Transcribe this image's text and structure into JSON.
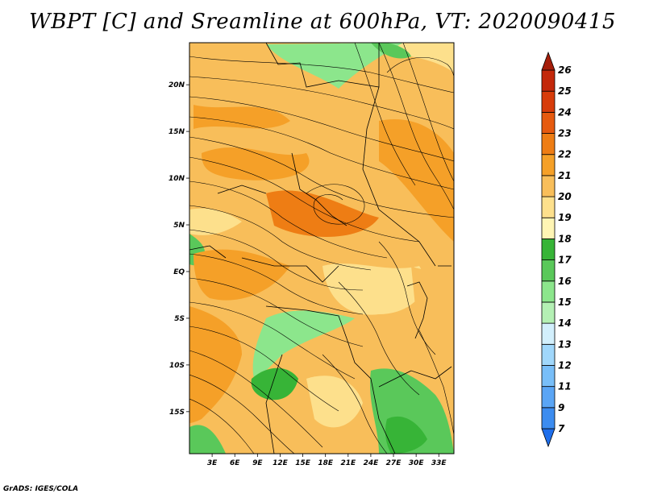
{
  "title": "WBPT [C] and Sreamline at 600hPa, VT: 2020090415",
  "credit": "GrADS: IGES/COLA",
  "map": {
    "lat_labels": [
      "20N",
      "15N",
      "10N",
      "5N",
      "EQ",
      "5S",
      "10S",
      "15S"
    ],
    "lat_values": [
      20,
      15,
      10,
      5,
      0,
      -5,
      -10,
      -15
    ],
    "lon_labels": [
      "3E",
      "6E",
      "9E",
      "12E",
      "15E",
      "18E",
      "21E",
      "24E",
      "27E",
      "30E",
      "33E"
    ],
    "lon_values": [
      3,
      6,
      9,
      12,
      15,
      18,
      21,
      24,
      27,
      30,
      33
    ],
    "lon_range": [
      0,
      35
    ],
    "lat_range": [
      -19.5,
      24.5
    ]
  },
  "colorbar": {
    "labels": [
      "7",
      "9",
      "11",
      "12",
      "13",
      "14",
      "15",
      "16",
      "17",
      "18",
      "19",
      "20",
      "21",
      "22",
      "23",
      "24",
      "25",
      "26"
    ],
    "colors": [
      "#1e6eeb",
      "#3c8cf0",
      "#5aa5f5",
      "#78bef8",
      "#a0d7fb",
      "#d2effc",
      "#b4f0b4",
      "#8ce68c",
      "#5ac85a",
      "#37b437",
      "#fff5b4",
      "#fde08c",
      "#f8be5a",
      "#f5a028",
      "#ee7d14",
      "#e65a0f",
      "#d73c0a",
      "#c3280a",
      "#a51e0a"
    ]
  }
}
